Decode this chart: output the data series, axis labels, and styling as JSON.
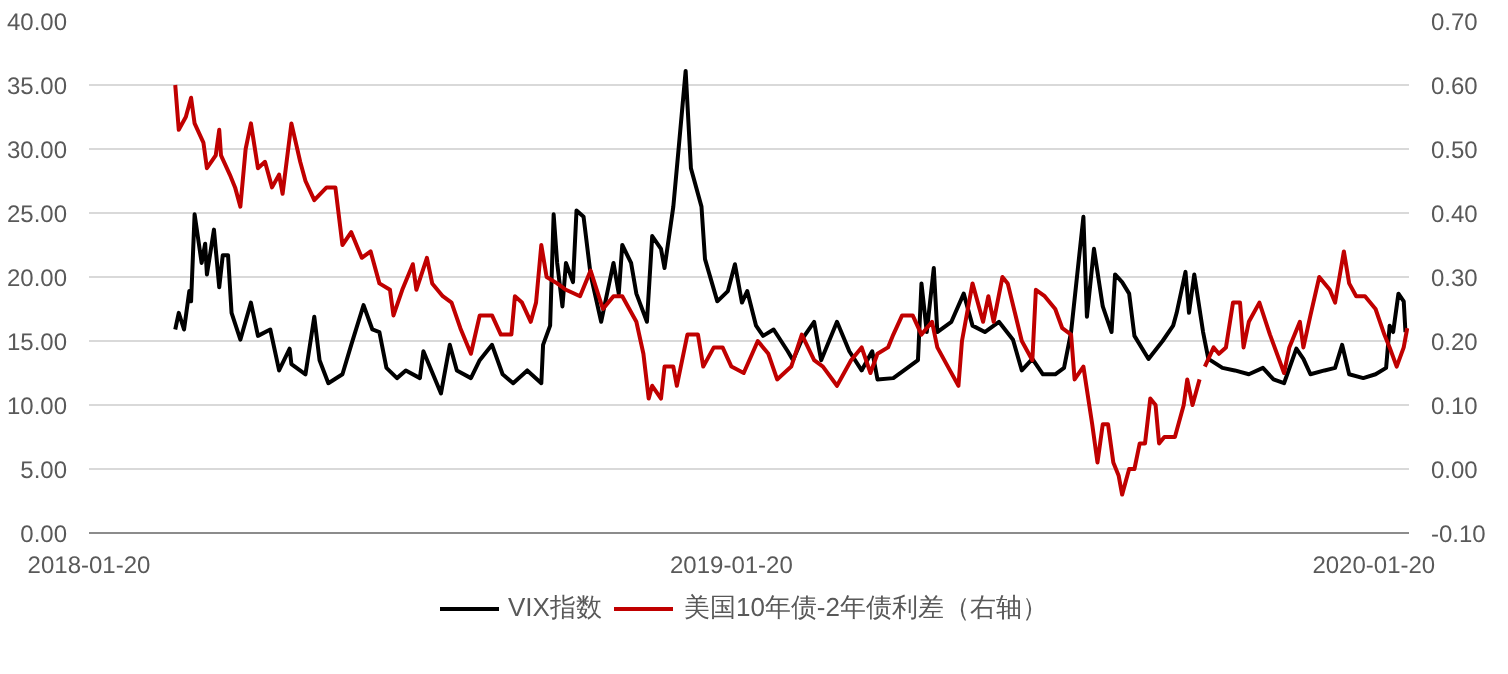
{
  "chart_data": {
    "type": "line",
    "xlim": [
      "2018-01-20",
      "2020-02-09"
    ],
    "xticks": [
      "2018-01-20",
      "2019-01-20",
      "2020-01-20"
    ],
    "ylim": [
      0,
      40
    ],
    "yticks": [
      {
        "value": 0,
        "label": "0.00"
      },
      {
        "value": 5,
        "label": "5.00"
      },
      {
        "value": 10,
        "label": "10.00"
      },
      {
        "value": 15,
        "label": "15.00"
      },
      {
        "value": 20,
        "label": "20.00"
      },
      {
        "value": 25,
        "label": "25.00"
      },
      {
        "value": 30,
        "label": "30.00"
      },
      {
        "value": 35,
        "label": "35.00"
      },
      {
        "value": 40,
        "label": "40.00"
      }
    ],
    "y2lim": [
      -0.1,
      0.7
    ],
    "y2ticks": [
      {
        "value": -0.1,
        "label": "-0.10"
      },
      {
        "value": 0,
        "label": "0.00"
      },
      {
        "value": 0.1,
        "label": "0.10"
      },
      {
        "value": 0.2,
        "label": "0.20"
      },
      {
        "value": 0.3,
        "label": "0.30"
      },
      {
        "value": 0.4,
        "label": "0.40"
      },
      {
        "value": 0.5,
        "label": "0.50"
      },
      {
        "value": 0.6,
        "label": "0.60"
      },
      {
        "value": 0.7,
        "label": "0.70"
      }
    ],
    "grid": "y",
    "legend": "bottom",
    "line_style": "solid",
    "series": [
      {
        "name": "VIX指数",
        "color": "#000000",
        "x": [
          "2018-03-10",
          "2018-03-12",
          "2018-03-15",
          "2018-03-18",
          "2018-03-19",
          "2018-03-21",
          "2018-03-25",
          "2018-03-27",
          "2018-03-28",
          "2018-04-01",
          "2018-04-04",
          "2018-04-06",
          "2018-04-09",
          "2018-04-11",
          "2018-04-16",
          "2018-04-22",
          "2018-04-26",
          "2018-05-03",
          "2018-05-08",
          "2018-05-14",
          "2018-05-15",
          "2018-05-23",
          "2018-05-28",
          "2018-05-31",
          "2018-06-05",
          "2018-06-13",
          "2018-06-18",
          "2018-06-25",
          "2018-06-30",
          "2018-07-04",
          "2018-07-08",
          "2018-07-14",
          "2018-07-19",
          "2018-07-27",
          "2018-07-29",
          "2018-08-08",
          "2018-08-13",
          "2018-08-17",
          "2018-08-25",
          "2018-08-30",
          "2018-09-06",
          "2018-09-12",
          "2018-09-18",
          "2018-09-26",
          "2018-10-04",
          "2018-10-05",
          "2018-10-09",
          "2018-10-11",
          "2018-10-13",
          "2018-10-16",
          "2018-10-18",
          "2018-10-22",
          "2018-10-24",
          "2018-10-28",
          "2018-11-01",
          "2018-11-07",
          "2018-11-14",
          "2018-11-17",
          "2018-11-19",
          "2018-11-24",
          "2018-11-27",
          "2018-12-03",
          "2018-12-06",
          "2018-12-11",
          "2018-12-13",
          "2018-12-18",
          "2018-12-21",
          "2018-12-25",
          "2018-12-28",
          "2019-01-03",
          "2019-01-05",
          "2019-01-12",
          "2019-01-18",
          "2019-01-22",
          "2019-01-26",
          "2019-01-29",
          "2019-02-03",
          "2019-02-07",
          "2019-02-13",
          "2019-02-21",
          "2019-02-24",
          "2019-03-01",
          "2019-03-08",
          "2019-03-12",
          "2019-03-21",
          "2019-03-28",
          "2019-04-04",
          "2019-04-10",
          "2019-04-13",
          "2019-04-22",
          "2019-04-30",
          "2019-05-06",
          "2019-05-08",
          "2019-05-11",
          "2019-05-15",
          "2019-05-17",
          "2019-05-25",
          "2019-06-01",
          "2019-06-06",
          "2019-06-13",
          "2019-06-21",
          "2019-06-29",
          "2019-07-04",
          "2019-07-10",
          "2019-07-16",
          "2019-07-23",
          "2019-07-28",
          "2019-08-01",
          "2019-08-08",
          "2019-08-10",
          "2019-08-14",
          "2019-08-19",
          "2019-08-24",
          "2019-08-26",
          "2019-08-30",
          "2019-09-03",
          "2019-09-06",
          "2019-09-14",
          "2019-09-22",
          "2019-09-28",
          "2019-09-30",
          "2019-10-05",
          "2019-10-07",
          "2019-10-10",
          "2019-10-15",
          "2019-10-18",
          "2019-10-26",
          "2019-11-02",
          "2019-11-10",
          "2019-11-18",
          "2019-11-24",
          "2019-11-30",
          "2019-12-07",
          "2019-12-11",
          "2019-12-15",
          "2019-12-23",
          "2019-12-29",
          "2020-01-02",
          "2020-01-06",
          "2020-01-14",
          "2020-01-21",
          "2020-01-27",
          "2020-01-29",
          "2020-01-31",
          "2020-02-03",
          "2020-02-06",
          "2020-02-07"
        ],
        "values": [
          15.9,
          17.2,
          15.9,
          18.9,
          18.1,
          24.9,
          21.1,
          22.6,
          20.2,
          23.7,
          19.2,
          21.7,
          21.7,
          17.2,
          15.1,
          18.0,
          15.4,
          15.9,
          12.7,
          14.4,
          13.2,
          12.4,
          16.9,
          13.5,
          11.7,
          12.4,
          14.7,
          17.8,
          15.9,
          15.7,
          12.9,
          12.1,
          12.7,
          12.1,
          14.2,
          10.9,
          14.7,
          12.7,
          12.1,
          13.5,
          14.7,
          12.4,
          11.7,
          12.7,
          11.7,
          14.7,
          16.2,
          24.9,
          21.1,
          17.7,
          21.1,
          19.6,
          25.2,
          24.7,
          20.2,
          16.5,
          21.1,
          18.7,
          22.5,
          21.1,
          18.7,
          16.5,
          23.2,
          22.2,
          20.7,
          25.5,
          30.0,
          36.1,
          28.5,
          25.5,
          21.4,
          18.1,
          18.9,
          21.0,
          18.0,
          18.9,
          16.2,
          15.4,
          15.9,
          14.2,
          13.5,
          15.1,
          16.5,
          13.5,
          16.5,
          14.2,
          12.7,
          14.2,
          12.0,
          12.1,
          12.9,
          13.5,
          19.5,
          15.7,
          20.7,
          15.7,
          16.5,
          18.7,
          16.2,
          15.7,
          16.5,
          15.1,
          12.7,
          13.6,
          12.4,
          12.4,
          12.9,
          15.7,
          24.7,
          16.9,
          22.2,
          17.7,
          15.7,
          20.2,
          19.6,
          18.7,
          15.4,
          13.6,
          15.0,
          16.2,
          17.2,
          20.4,
          17.2,
          20.2,
          15.7,
          13.6,
          12.9,
          12.7,
          12.4,
          12.9,
          12.0,
          11.7,
          14.4,
          13.6,
          12.4,
          12.7,
          12.9,
          14.7,
          12.4,
          12.1,
          12.4,
          12.9,
          16.2,
          15.7,
          18.7,
          18.1,
          15.7
        ]
      },
      {
        "name": "美国10年债-2年债利差（右轴）",
        "color": "#c00000",
        "axis": "y2",
        "x": [
          "2018-03-10",
          "2018-03-12",
          "2018-03-16",
          "2018-03-19",
          "2018-03-21",
          "2018-03-26",
          "2018-03-28",
          "2018-04-02",
          "2018-04-04",
          "2018-04-05",
          "2018-04-10",
          "2018-04-13",
          "2018-04-16",
          "2018-04-19",
          "2018-04-22",
          "2018-04-26",
          "2018-04-30",
          "2018-05-04",
          "2018-05-08",
          "2018-05-10",
          "2018-05-15",
          "2018-05-20",
          "2018-05-23",
          "2018-05-28",
          "2018-06-04",
          "2018-06-09",
          "2018-06-13",
          "2018-06-18",
          "2018-06-24",
          "2018-06-29",
          "2018-07-04",
          "2018-07-10",
          "2018-07-12",
          "2018-07-17",
          "2018-07-23",
          "2018-07-25",
          "2018-07-31",
          "2018-08-03",
          "2018-08-09",
          "2018-08-14",
          "2018-08-19",
          "2018-08-25",
          "2018-08-30",
          "2018-09-06",
          "2018-09-11",
          "2018-09-17",
          "2018-09-19",
          "2018-09-23",
          "2018-09-28",
          "2018-10-01",
          "2018-10-04",
          "2018-10-07",
          "2018-10-13",
          "2018-10-18",
          "2018-10-26",
          "2018-11-01",
          "2018-11-08",
          "2018-11-14",
          "2018-11-19",
          "2018-11-27",
          "2018-12-01",
          "2018-12-04",
          "2018-12-06",
          "2018-12-11",
          "2018-12-13",
          "2018-12-18",
          "2018-12-20",
          "2018-12-26",
          "2019-01-01",
          "2019-01-04",
          "2019-01-10",
          "2019-01-15",
          "2019-01-20",
          "2019-01-27",
          "2019-02-04",
          "2019-02-10",
          "2019-02-15",
          "2019-02-23",
          "2019-03-01",
          "2019-03-08",
          "2019-03-13",
          "2019-03-21",
          "2019-03-29",
          "2019-04-04",
          "2019-04-09",
          "2019-04-13",
          "2019-04-19",
          "2019-04-22",
          "2019-04-27",
          "2019-05-03",
          "2019-05-08",
          "2019-05-14",
          "2019-05-17",
          "2019-05-23",
          "2019-05-29",
          "2019-05-31",
          "2019-06-06",
          "2019-06-12",
          "2019-06-15",
          "2019-06-18",
          "2019-06-23",
          "2019-06-26",
          "2019-07-04",
          "2019-07-10",
          "2019-07-12",
          "2019-07-17",
          "2019-07-23",
          "2019-07-27",
          "2019-08-01",
          "2019-08-03",
          "2019-08-08",
          "2019-08-13",
          "2019-08-16",
          "2019-08-19",
          "2019-08-22",
          "2019-08-25",
          "2019-08-28",
          "2019-08-30",
          "2019-09-03",
          "2019-09-06",
          "2019-09-09",
          "2019-09-12",
          "2019-09-15",
          "2019-09-18",
          "2019-09-20",
          "2019-09-23",
          "2019-09-29",
          "2019-10-04",
          "2019-10-06",
          "2019-10-09",
          "2019-10-13",
          "2019-10-14",
          "2019-10-16",
          "2019-10-21",
          "2019-10-24",
          "2019-10-28",
          "2019-11-01",
          "2019-11-05",
          "2019-11-07",
          "2019-11-10",
          "2019-11-16",
          "2019-11-22",
          "2019-11-30",
          "2019-12-03",
          "2019-12-09",
          "2019-12-11",
          "2019-12-15",
          "2019-12-20",
          "2019-12-26",
          "2019-12-29",
          "2020-01-03",
          "2020-01-06",
          "2020-01-10",
          "2020-01-15",
          "2020-01-21",
          "2020-01-26",
          "2020-01-29",
          "2020-02-02",
          "2020-02-06",
          "2020-02-08"
        ],
        "values": [
          0.6,
          0.53,
          0.55,
          0.58,
          0.54,
          0.51,
          0.47,
          0.49,
          0.53,
          0.49,
          0.46,
          0.44,
          0.41,
          0.5,
          0.54,
          0.47,
          0.48,
          0.44,
          0.46,
          0.43,
          0.54,
          0.48,
          0.45,
          0.42,
          0.44,
          0.44,
          0.35,
          0.37,
          0.33,
          0.34,
          0.29,
          0.28,
          0.24,
          0.28,
          0.32,
          0.28,
          0.33,
          0.29,
          0.27,
          0.26,
          0.22,
          0.18,
          0.24,
          0.24,
          0.21,
          0.21,
          0.27,
          0.26,
          0.23,
          0.26,
          0.35,
          0.3,
          0.29,
          0.28,
          0.27,
          0.31,
          0.25,
          0.27,
          0.27,
          0.23,
          0.18,
          0.11,
          0.13,
          0.11,
          0.16,
          0.16,
          0.13,
          0.21,
          0.21,
          0.16,
          0.19,
          0.19,
          0.16,
          0.15,
          0.2,
          0.18,
          0.14,
          0.16,
          0.21,
          0.17,
          0.16,
          0.13,
          0.17,
          0.19,
          0.15,
          0.18,
          0.19,
          0.21,
          0.24,
          0.24,
          0.21,
          0.23,
          0.19,
          0.16,
          0.13,
          0.2,
          0.29,
          0.23,
          0.27,
          0.23,
          0.3,
          0.29,
          0.2,
          0.17,
          0.28,
          0.27,
          0.25,
          0.22,
          0.21,
          0.14,
          0.16,
          0.07,
          0.01,
          0.07,
          0.07,
          0.01,
          -0.01,
          -0.04,
          0.0,
          0.0,
          0.04,
          0.04,
          0.11,
          0.1,
          0.04,
          0.05,
          0.05,
          0.1,
          0.14,
          0.1,
          0.14,
          null,
          0.16,
          0.19,
          0.18,
          0.19,
          0.26,
          0.26,
          0.19,
          0.23,
          0.26,
          0.21,
          0.15,
          0.19,
          0.23,
          0.19,
          0.24,
          0.3,
          0.28,
          0.26,
          0.34,
          0.29,
          0.27,
          0.27,
          0.25,
          0.21,
          0.19,
          0.16,
          0.19,
          0.22
        ]
      }
    ]
  }
}
